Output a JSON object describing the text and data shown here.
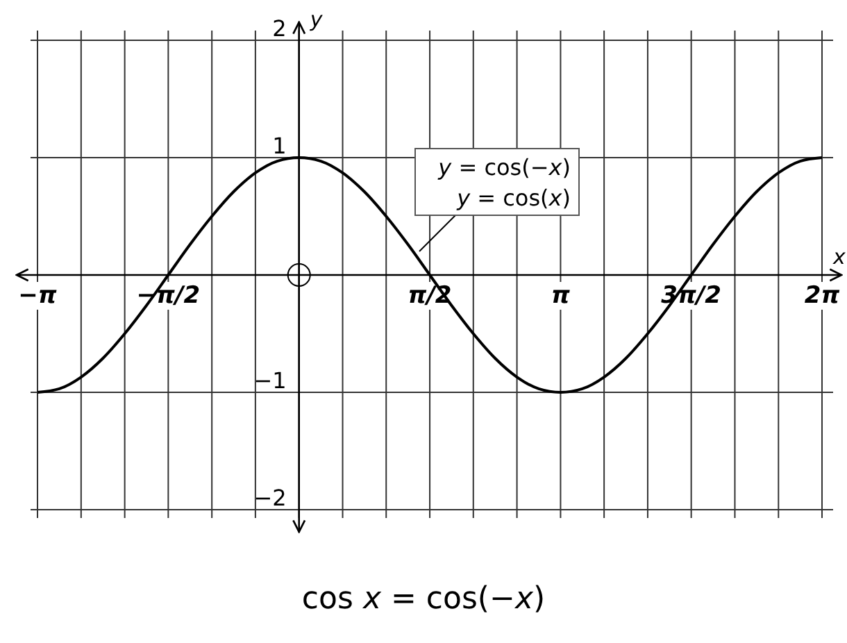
{
  "chart_data": {
    "type": "line",
    "xlabel": "x",
    "ylabel": "y",
    "x": [
      -3.142,
      -2.88,
      -2.618,
      -2.356,
      -2.094,
      -1.833,
      -1.571,
      -1.309,
      -1.047,
      -0.785,
      -0.524,
      -0.262,
      0,
      0.262,
      0.524,
      0.785,
      1.047,
      1.309,
      1.571,
      1.833,
      2.094,
      2.356,
      2.618,
      2.88,
      3.142,
      3.403,
      3.665,
      3.927,
      4.189,
      4.451,
      4.712,
      4.974,
      5.236,
      5.498,
      5.76,
      6.021,
      6.283
    ],
    "series": [
      {
        "color": "#000000",
        "values": [
          -1,
          -0.97,
          -0.87,
          -0.71,
          -0.5,
          -0.26,
          0,
          0.26,
          0.5,
          0.71,
          0.87,
          0.97,
          1,
          0.97,
          0.87,
          0.71,
          0.5,
          0.26,
          0,
          -0.26,
          -0.5,
          -0.71,
          -0.87,
          -0.97,
          -1,
          -0.97,
          -0.87,
          -0.71,
          -0.5,
          -0.26,
          0,
          0.26,
          0.5,
          0.71,
          0.87,
          0.97,
          1
        ]
      }
    ],
    "xlim": [
      -3.142,
      6.283
    ],
    "ylim": [
      -2,
      2
    ],
    "xticks": [
      {
        "value": -3.142,
        "label": "−π"
      },
      {
        "value": -2.618,
        "label": null
      },
      {
        "value": -2.094,
        "label": null
      },
      {
        "value": -1.571,
        "label": "−π/2"
      },
      {
        "value": -1.047,
        "label": null
      },
      {
        "value": -0.524,
        "label": null
      },
      {
        "value": 0,
        "label": null
      },
      {
        "value": 0.524,
        "label": null
      },
      {
        "value": 1.047,
        "label": null
      },
      {
        "value": 1.571,
        "label": "π/2"
      },
      {
        "value": 2.094,
        "label": null
      },
      {
        "value": 2.618,
        "label": null
      },
      {
        "value": 3.142,
        "label": "π"
      },
      {
        "value": 3.665,
        "label": null
      },
      {
        "value": 4.189,
        "label": null
      },
      {
        "value": 4.712,
        "label": "3π/2"
      },
      {
        "value": 5.236,
        "label": null
      },
      {
        "value": 5.76,
        "label": null
      },
      {
        "value": 6.283,
        "label": "2π"
      }
    ],
    "yticks": [
      -2,
      -1,
      1,
      2
    ],
    "grid": true,
    "marker": "none",
    "line_style": "solid",
    "annotations": [
      "y = cos(−x)",
      "y = cos(x)",
      "cos x = cos(−x)"
    ]
  }
}
